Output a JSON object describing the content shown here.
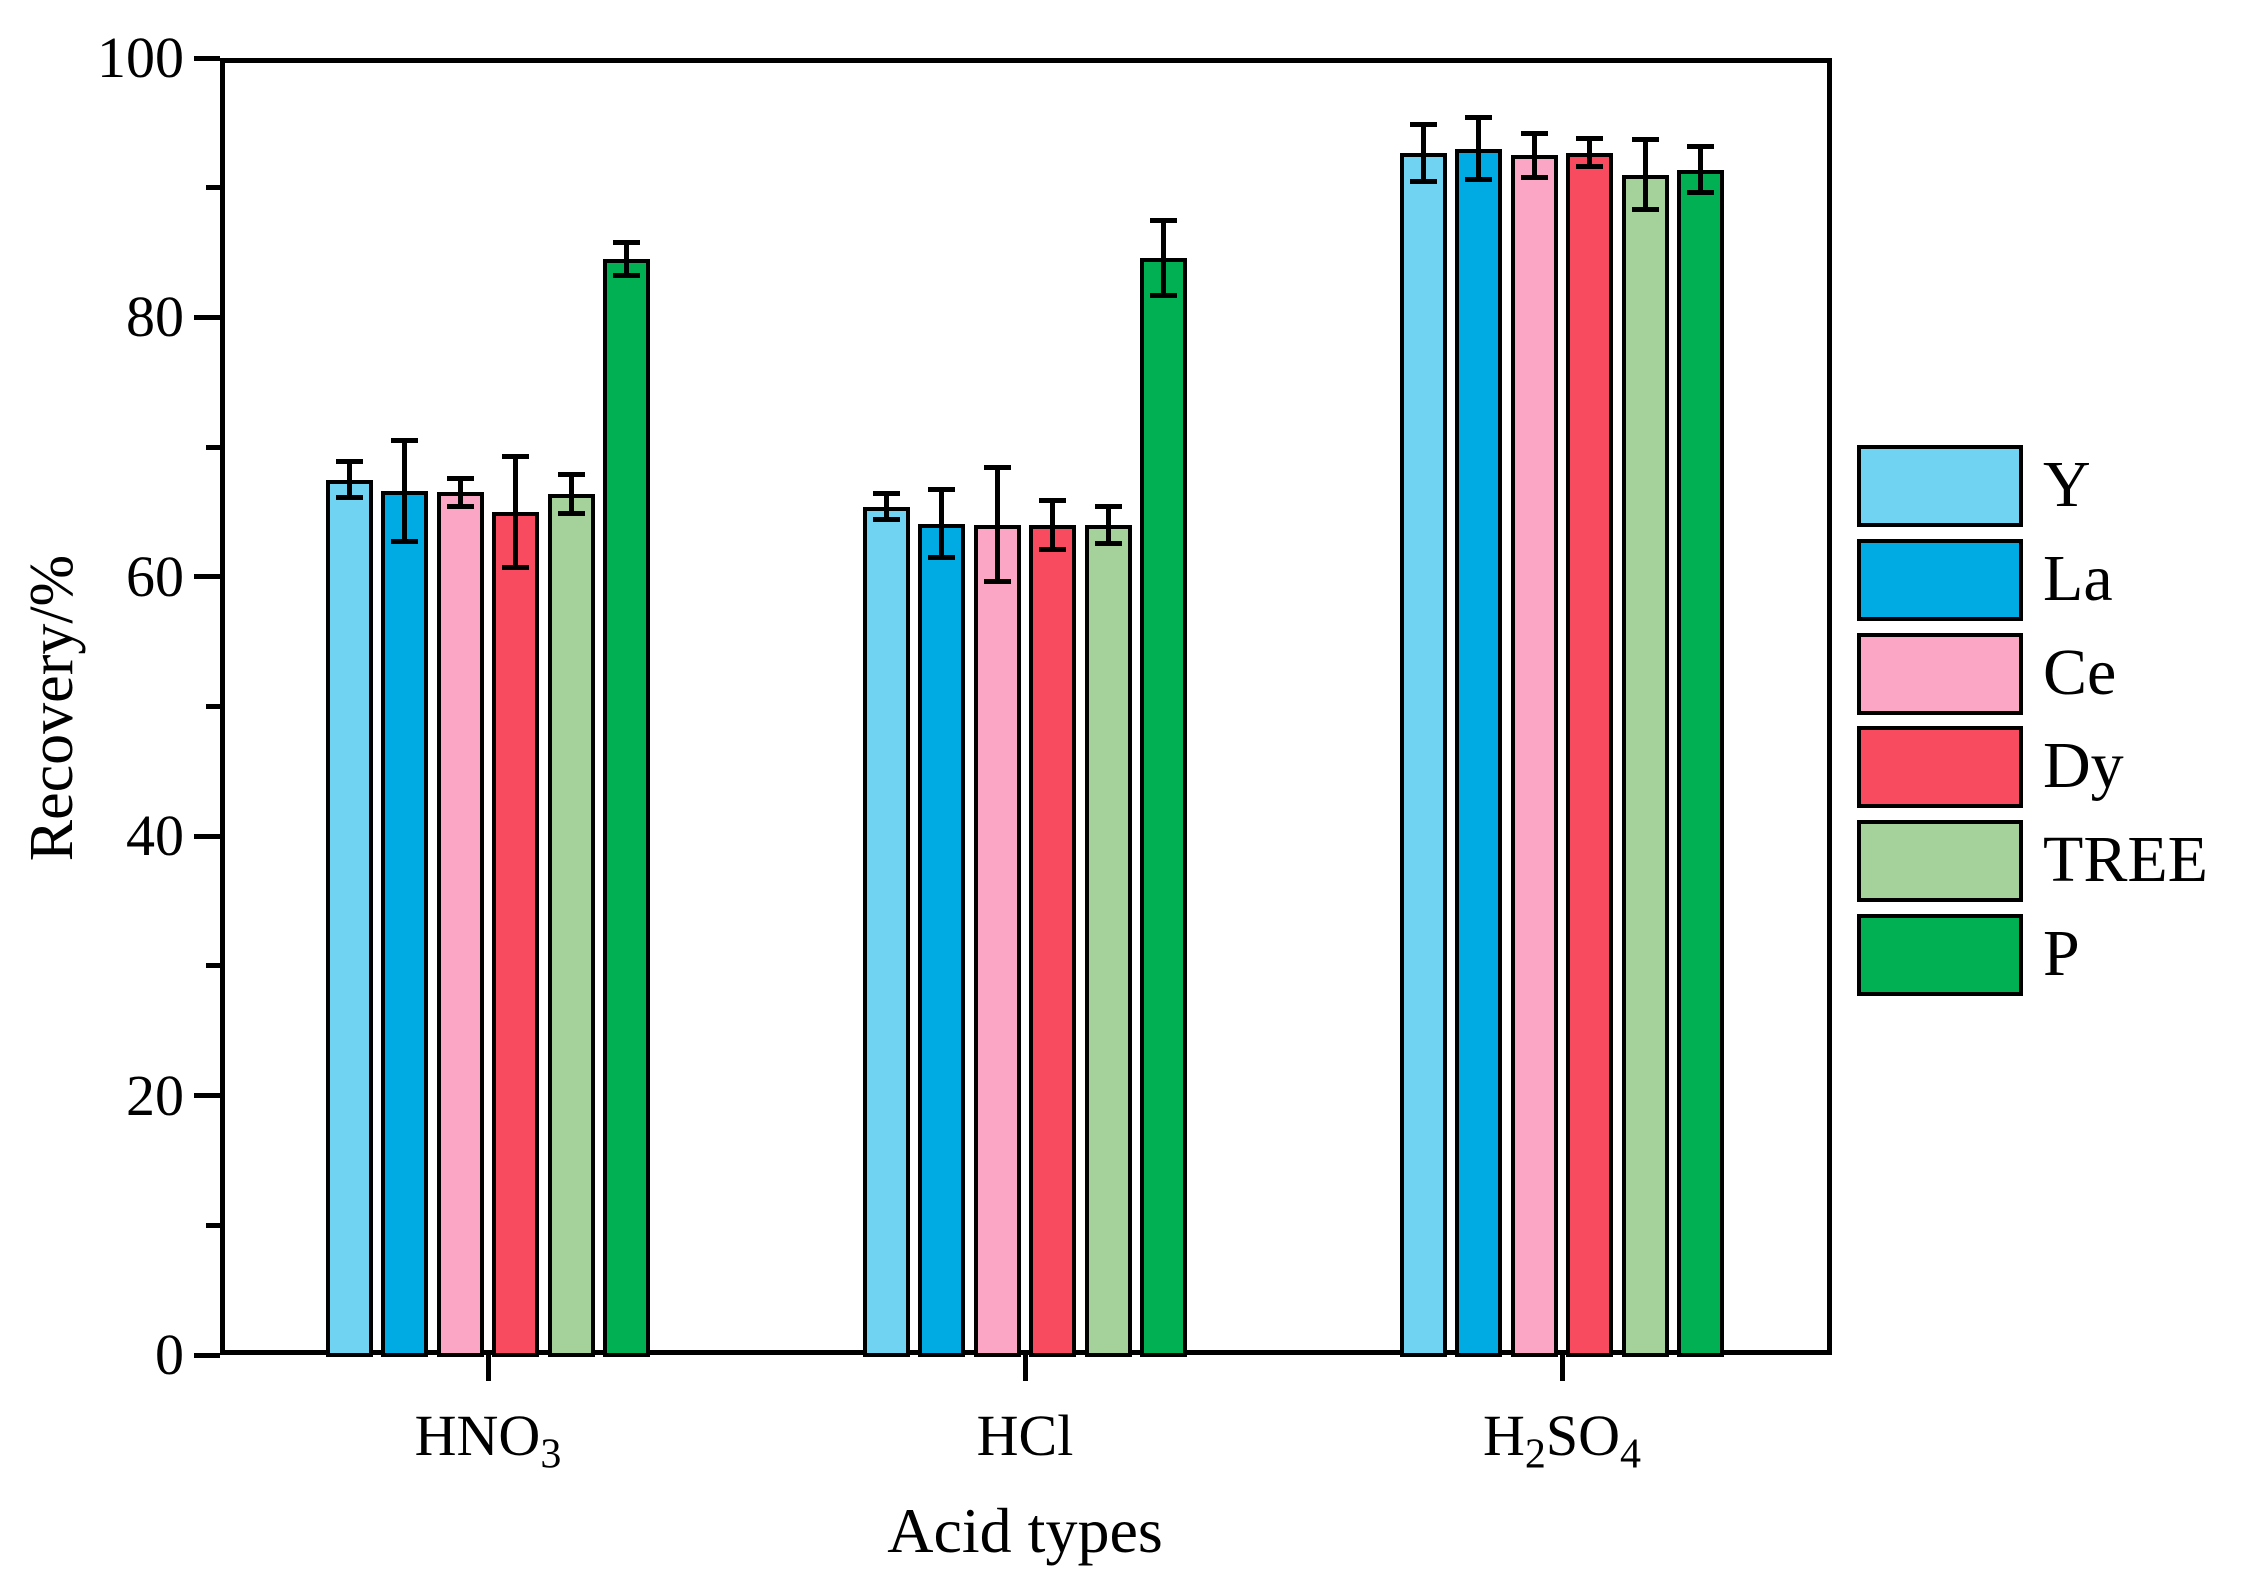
{
  "chart_data": {
    "type": "bar",
    "title": "",
    "xlabel": "Acid types",
    "ylabel": "Recovery/%",
    "ylim": [
      0,
      100
    ],
    "yticks_major": [
      0,
      20,
      40,
      60,
      80,
      100
    ],
    "yticks_minor": [
      10,
      30,
      50,
      70,
      90
    ],
    "grid": "off",
    "legend_position": "right-outside",
    "categories": [
      "HNO3",
      "HCl",
      "H2SO4"
    ],
    "category_segments": [
      [
        {
          "t": "HNO"
        },
        {
          "t": "3",
          "sub": true
        }
      ],
      [
        {
          "t": "HCl"
        }
      ],
      [
        {
          "t": "H"
        },
        {
          "t": "2",
          "sub": true
        },
        {
          "t": "SO"
        },
        {
          "t": "4",
          "sub": true
        }
      ]
    ],
    "series": [
      {
        "name": "Y",
        "color": "#6fd3f1",
        "values": [
          67.5,
          65.4,
          92.7
        ],
        "errors": [
          1.4,
          1.0,
          2.2
        ]
      },
      {
        "name": "La",
        "color": "#00abe3",
        "values": [
          66.6,
          64.1,
          93.0
        ],
        "errors": [
          3.9,
          2.6,
          2.4
        ]
      },
      {
        "name": "Ce",
        "color": "#fba6c5",
        "values": [
          66.5,
          64.0,
          92.5
        ],
        "errors": [
          1.1,
          4.4,
          1.7
        ]
      },
      {
        "name": "Dy",
        "color": "#f94b5f",
        "values": [
          65.0,
          64.0,
          92.7
        ],
        "errors": [
          4.3,
          1.9,
          1.1
        ]
      },
      {
        "name": "TREE",
        "color": "#a5d29a",
        "values": [
          66.4,
          64.0,
          91.0
        ],
        "errors": [
          1.5,
          1.4,
          2.7
        ]
      },
      {
        "name": "P",
        "color": "#00b053",
        "values": [
          84.5,
          84.6,
          91.4
        ],
        "errors": [
          1.3,
          2.9,
          1.8
        ]
      }
    ],
    "axis_color": "#000000",
    "background_color": "#ffffff"
  }
}
